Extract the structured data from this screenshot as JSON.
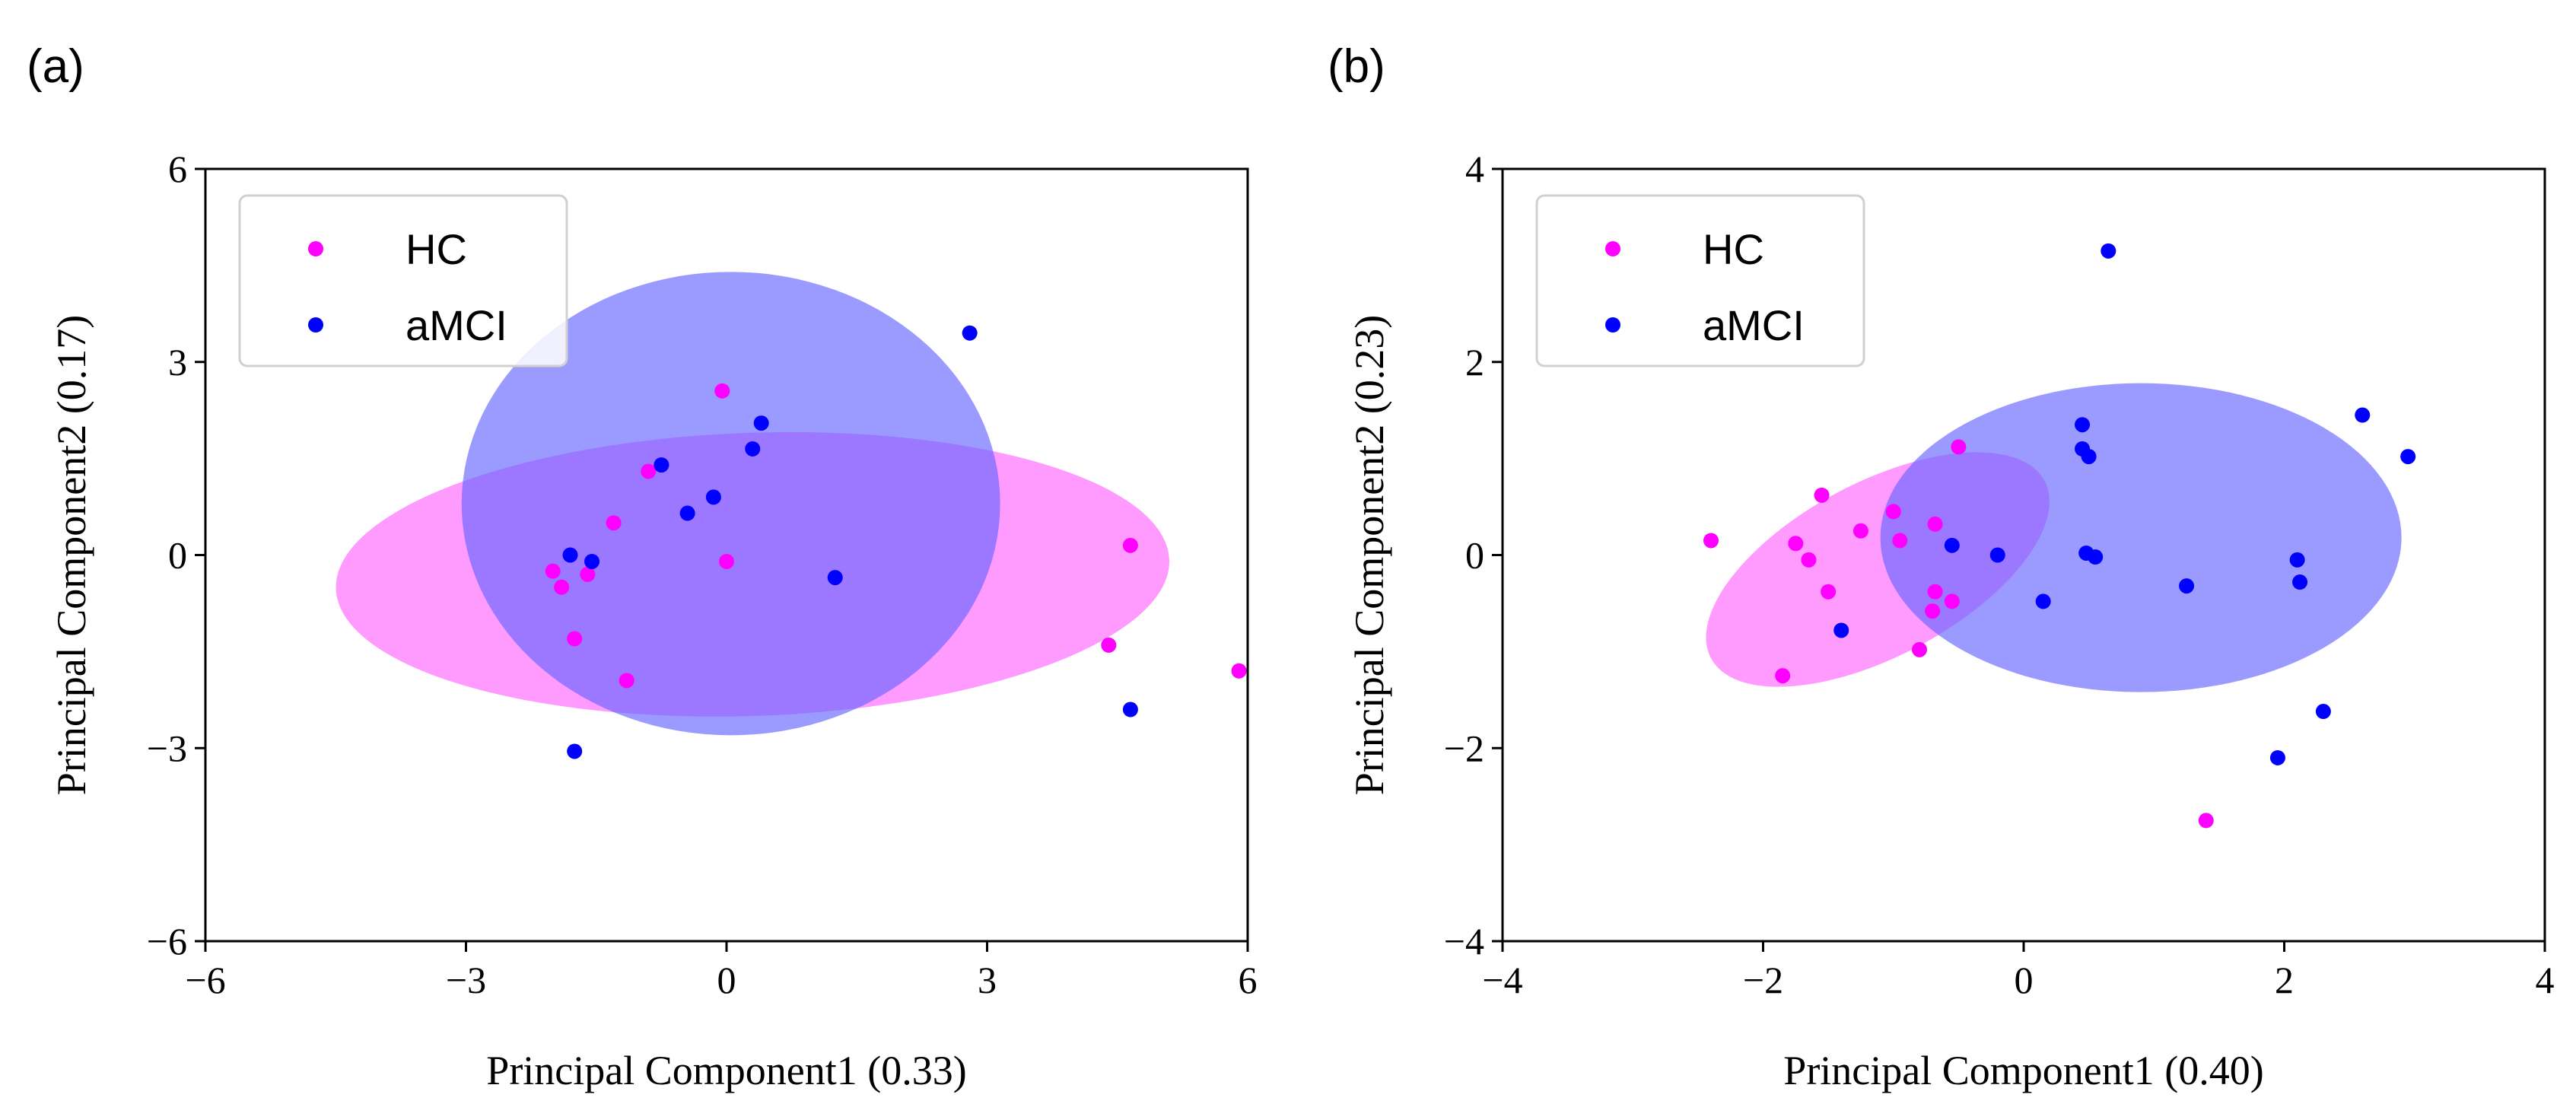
{
  "colors": {
    "hc": "#ff00ff",
    "amci": "#0000ff",
    "overlap": "#8000ff",
    "hc_ellipse": "#ff66ff",
    "amci_ellipse": "#6666ff"
  },
  "chart_data": [
    {
      "panel_label": "(a)",
      "type": "scatter",
      "xlabel": "Principal Component1 (0.33)",
      "ylabel": "Principal Component2 (0.17)",
      "xlim": [
        -6,
        6
      ],
      "ylim": [
        -6,
        6
      ],
      "xticks": [
        -6,
        -3,
        0,
        3,
        6
      ],
      "yticks": [
        -6,
        -3,
        0,
        3,
        6
      ],
      "xtick_labels": [
        "−6",
        "−3",
        "0",
        "3",
        "6"
      ],
      "ytick_labels": [
        "−6",
        "−3",
        "0",
        "3",
        "6"
      ],
      "legend": {
        "position": "top-left",
        "entries": [
          "HC",
          "aMCI"
        ]
      },
      "series": [
        {
          "name": "HC",
          "color": "#ff00ff",
          "points": [
            [
              -2.0,
              -0.25
            ],
            [
              -1.9,
              -0.5
            ],
            [
              -1.6,
              -0.3
            ],
            [
              -1.75,
              -1.3
            ],
            [
              -1.3,
              0.5
            ],
            [
              -1.15,
              -1.95
            ],
            [
              -0.9,
              1.3
            ],
            [
              -0.05,
              2.55
            ],
            [
              0.0,
              -0.1
            ],
            [
              4.4,
              -1.4
            ],
            [
              4.65,
              0.15
            ],
            [
              5.9,
              -1.8
            ]
          ],
          "ellipse": {
            "center": [
              0.3,
              -0.3
            ],
            "rx": 4.8,
            "ry": 2.2,
            "angle": -2
          }
        },
        {
          "name": "aMCI",
          "color": "#0000ff",
          "points": [
            [
              -1.8,
              0.0
            ],
            [
              -1.55,
              -0.1
            ],
            [
              -0.75,
              1.4
            ],
            [
              -0.45,
              0.65
            ],
            [
              -0.15,
              0.9
            ],
            [
              0.3,
              1.65
            ],
            [
              0.4,
              2.05
            ],
            [
              1.25,
              -0.35
            ],
            [
              2.8,
              3.45
            ],
            [
              4.65,
              -2.4
            ],
            [
              -1.75,
              -3.05
            ]
          ],
          "ellipse": {
            "center": [
              0.05,
              0.8
            ],
            "rx": 3.1,
            "ry": 3.6,
            "angle": 0
          }
        }
      ]
    },
    {
      "panel_label": "(b)",
      "type": "scatter",
      "xlabel": "Principal Component1 (0.40)",
      "ylabel": "Principal Component2 (0.23)",
      "xlim": [
        -4,
        4
      ],
      "ylim": [
        -4,
        4
      ],
      "xticks": [
        -4,
        -2,
        0,
        2,
        4
      ],
      "yticks": [
        -4,
        -2,
        0,
        2,
        4
      ],
      "xtick_labels": [
        "−4",
        "−2",
        "0",
        "2",
        "4"
      ],
      "ytick_labels": [
        "−4",
        "−2",
        "0",
        "2",
        "4"
      ],
      "legend": {
        "position": "top-left",
        "entries": [
          "HC",
          "aMCI"
        ]
      },
      "series": [
        {
          "name": "HC",
          "color": "#ff00ff",
          "points": [
            [
              -2.4,
              0.15
            ],
            [
              -1.75,
              0.12
            ],
            [
              -1.55,
              0.62
            ],
            [
              -1.65,
              -0.05
            ],
            [
              -1.5,
              -0.38
            ],
            [
              -1.25,
              0.25
            ],
            [
              -1.0,
              0.45
            ],
            [
              -0.95,
              0.15
            ],
            [
              -1.85,
              -1.25
            ],
            [
              -0.8,
              -0.98
            ],
            [
              -0.7,
              -0.58
            ],
            [
              -0.68,
              -0.38
            ],
            [
              -0.68,
              0.32
            ],
            [
              -0.55,
              -0.48
            ],
            [
              -0.5,
              1.12
            ],
            [
              1.4,
              -2.75
            ]
          ],
          "ellipse": {
            "center": [
              -1.12,
              -0.15
            ],
            "rx": 1.45,
            "ry": 0.9,
            "angle": -28
          }
        },
        {
          "name": "aMCI",
          "color": "#0000ff",
          "points": [
            [
              0.65,
              3.15
            ],
            [
              0.45,
              1.35
            ],
            [
              0.45,
              1.1
            ],
            [
              0.5,
              1.02
            ],
            [
              -0.55,
              0.1
            ],
            [
              -0.2,
              0.0
            ],
            [
              0.48,
              0.02
            ],
            [
              0.55,
              -0.02
            ],
            [
              0.15,
              -0.48
            ],
            [
              -1.4,
              -0.78
            ],
            [
              1.25,
              -0.32
            ],
            [
              2.1,
              -0.05
            ],
            [
              2.12,
              -0.28
            ],
            [
              2.6,
              1.45
            ],
            [
              2.95,
              1.02
            ],
            [
              2.3,
              -1.62
            ],
            [
              1.95,
              -2.1
            ]
          ],
          "ellipse": {
            "center": [
              0.9,
              0.18
            ],
            "rx": 2.0,
            "ry": 1.6,
            "angle": 0
          }
        }
      ]
    }
  ]
}
